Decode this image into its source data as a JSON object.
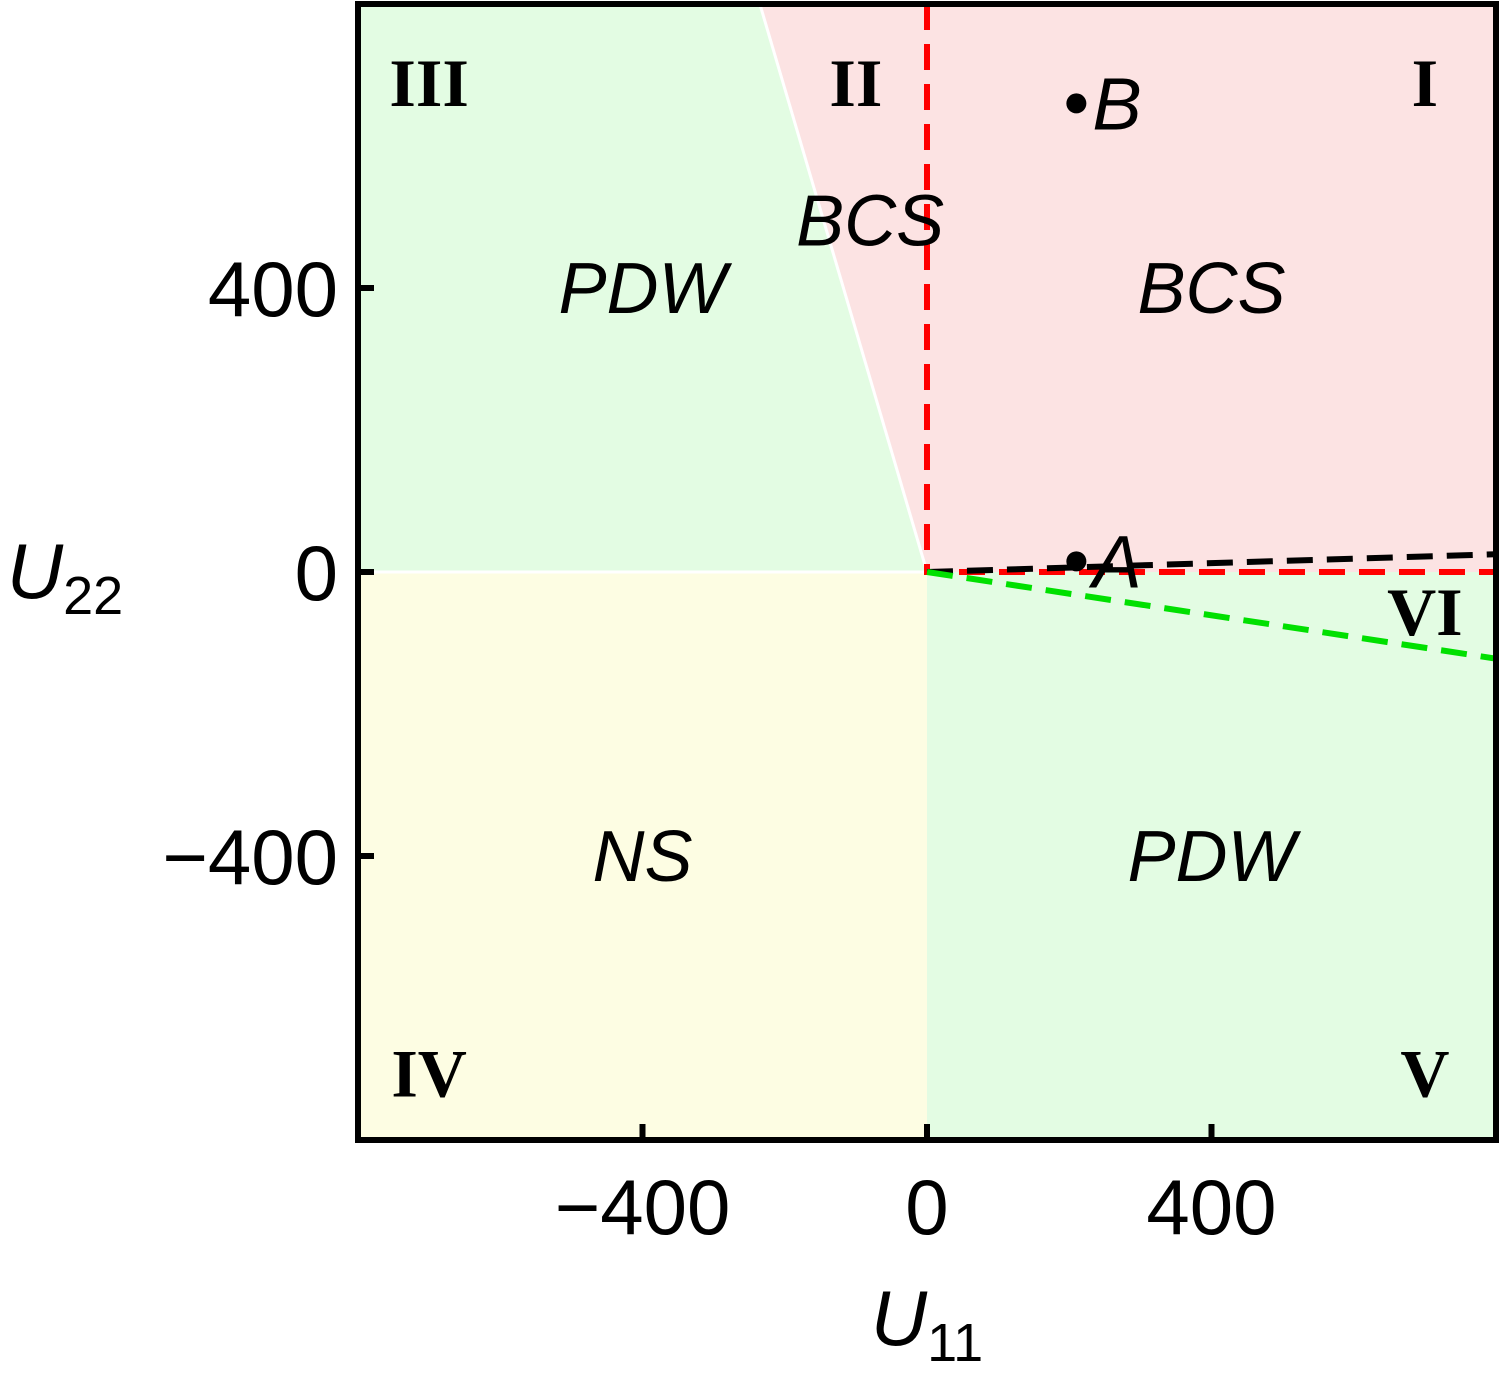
{
  "chart_data": {
    "type": "area",
    "title": "",
    "xlabel": {
      "base": "U",
      "sub": "11"
    },
    "ylabel": {
      "base": "U",
      "sub": "22"
    },
    "xlim": [
      -800,
      800
    ],
    "ylim": [
      -800,
      800
    ],
    "xticks": [
      {
        "value": -400,
        "label": "−400"
      },
      {
        "value": 0,
        "label": "0"
      },
      {
        "value": 400,
        "label": "400"
      }
    ],
    "yticks": [
      {
        "value": 400,
        "label": "400"
      },
      {
        "value": 0,
        "label": "0"
      },
      {
        "value": -400,
        "label": "−400"
      }
    ],
    "grid": false,
    "regions": [
      {
        "phase": "PDW",
        "color": "#e3fce3",
        "polygon": [
          [
            -800,
            0
          ],
          [
            -800,
            800
          ],
          [
            -235,
            800
          ],
          [
            0,
            0
          ]
        ]
      },
      {
        "phase": "BCS",
        "color": "#fce3e3",
        "polygon": [
          [
            -235,
            800
          ],
          [
            800,
            800
          ],
          [
            800,
            0
          ],
          [
            0,
            0
          ]
        ]
      },
      {
        "phase": "NS",
        "color": "#fdfde3",
        "polygon": [
          [
            -800,
            -800
          ],
          [
            -800,
            0
          ],
          [
            0,
            0
          ],
          [
            0,
            -800
          ]
        ]
      },
      {
        "phase": "PDW",
        "color": "#e3fce3",
        "polygon": [
          [
            0,
            -800
          ],
          [
            0,
            0
          ],
          [
            800,
            0
          ],
          [
            800,
            -800
          ]
        ]
      }
    ],
    "boundary_lines": [
      {
        "color": "#ffffff",
        "style": "solid",
        "points": [
          [
            -235,
            800
          ],
          [
            0,
            0
          ]
        ]
      },
      {
        "color": "#ffffff",
        "style": "solid",
        "points": [
          [
            -800,
            0
          ],
          [
            0,
            0
          ]
        ]
      },
      {
        "color": "#ff0000",
        "style": "dashed",
        "points": [
          [
            0,
            800
          ],
          [
            0,
            0
          ],
          [
            800,
            0
          ]
        ]
      },
      {
        "color": "#000000",
        "style": "dashed",
        "points": [
          [
            0,
            0
          ],
          [
            800,
            25
          ]
        ]
      },
      {
        "color": "#00e000",
        "style": "dashed",
        "points": [
          [
            0,
            0
          ],
          [
            800,
            -122
          ]
        ]
      }
    ],
    "phase_labels": [
      {
        "text": "PDW",
        "x": -400,
        "y": 400
      },
      {
        "text": "BCS",
        "x": -80,
        "y": 495
      },
      {
        "text": "BCS",
        "x": 400,
        "y": 400
      },
      {
        "text": "NS",
        "x": -400,
        "y": -400
      },
      {
        "text": "PDW",
        "x": 400,
        "y": -400
      }
    ],
    "region_numbers": [
      {
        "text": "I",
        "x": 700,
        "y": 690
      },
      {
        "text": "II",
        "x": -100,
        "y": 690
      },
      {
        "text": "III",
        "x": -700,
        "y": 690
      },
      {
        "text": "IV",
        "x": -700,
        "y": -705
      },
      {
        "text": "V",
        "x": 700,
        "y": -705
      },
      {
        "text": "VI",
        "x": 700,
        "y": -55
      }
    ],
    "points": [
      {
        "name": "A",
        "x": 210,
        "y": 15
      },
      {
        "name": "B",
        "x": 210,
        "y": 660
      }
    ]
  }
}
